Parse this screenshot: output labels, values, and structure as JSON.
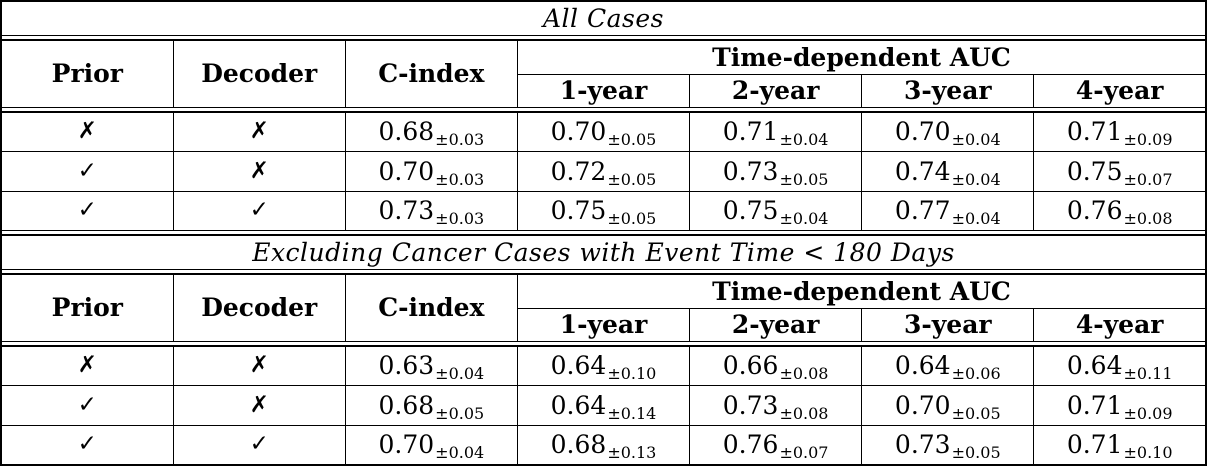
{
  "colors": {
    "text": "#000000",
    "background": "#ffffff",
    "border": "#000000"
  },
  "glyphs": {
    "check": "✓",
    "cross": "✗"
  },
  "table": {
    "sections": [
      {
        "title": "All Cases",
        "columns": [
          "Prior",
          "Decoder",
          "C-index"
        ],
        "auc_header": "Time-dependent AUC",
        "auc_columns": [
          "1-year",
          "2-year",
          "3-year",
          "4-year"
        ],
        "rows": [
          {
            "prior": "cross",
            "decoder": "cross",
            "c_index": [
              "0.68",
              "±0.03"
            ],
            "auc": [
              [
                "0.70",
                "±0.05"
              ],
              [
                "0.71",
                "±0.04"
              ],
              [
                "0.70",
                "±0.04"
              ],
              [
                "0.71",
                "±0.09"
              ]
            ]
          },
          {
            "prior": "check",
            "decoder": "cross",
            "c_index": [
              "0.70",
              "±0.03"
            ],
            "auc": [
              [
                "0.72",
                "±0.05"
              ],
              [
                "0.73",
                "±0.05"
              ],
              [
                "0.74",
                "±0.04"
              ],
              [
                "0.75",
                "±0.07"
              ]
            ]
          },
          {
            "prior": "check",
            "decoder": "check",
            "c_index": [
              "0.73",
              "±0.03"
            ],
            "auc": [
              [
                "0.75",
                "±0.05"
              ],
              [
                "0.75",
                "±0.04"
              ],
              [
                "0.77",
                "±0.04"
              ],
              [
                "0.76",
                "±0.08"
              ]
            ]
          }
        ]
      },
      {
        "title": "Excluding Cancer Cases with Event Time < 180 Days",
        "columns": [
          "Prior",
          "Decoder",
          "C-index"
        ],
        "auc_header": "Time-dependent AUC",
        "auc_columns": [
          "1-year",
          "2-year",
          "3-year",
          "4-year"
        ],
        "rows": [
          {
            "prior": "cross",
            "decoder": "cross",
            "c_index": [
              "0.63",
              "±0.04"
            ],
            "auc": [
              [
                "0.64",
                "±0.10"
              ],
              [
                "0.66",
                "±0.08"
              ],
              [
                "0.64",
                "±0.06"
              ],
              [
                "0.64",
                "±0.11"
              ]
            ]
          },
          {
            "prior": "check",
            "decoder": "cross",
            "c_index": [
              "0.68",
              "±0.05"
            ],
            "auc": [
              [
                "0.64",
                "±0.14"
              ],
              [
                "0.73",
                "±0.08"
              ],
              [
                "0.70",
                "±0.05"
              ],
              [
                "0.71",
                "±0.09"
              ]
            ]
          },
          {
            "prior": "check",
            "decoder": "check",
            "c_index": [
              "0.70",
              "±0.04"
            ],
            "auc": [
              [
                "0.68",
                "±0.13"
              ],
              [
                "0.76",
                "±0.07"
              ],
              [
                "0.73",
                "±0.05"
              ],
              [
                "0.71",
                "±0.10"
              ]
            ]
          }
        ]
      }
    ]
  }
}
